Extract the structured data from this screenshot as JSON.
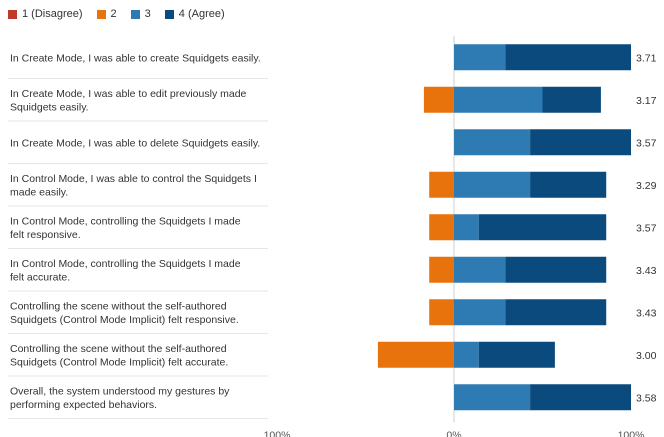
{
  "chart_data": {
    "type": "bar",
    "orientation": "horizontal-diverging-stacked",
    "series": [
      {
        "name": "1 (Disagree)",
        "color": "#c0392b"
      },
      {
        "name": "2",
        "color": "#e8720c"
      },
      {
        "name": "3",
        "color": "#2e7bb4"
      },
      {
        "name": "4 (Agree)",
        "color": "#0b4a7d"
      }
    ],
    "categories": [
      "In Create Mode, I was able to create Squidgets easily.",
      "In Create Mode, I was able to edit previously made Squidgets easily.",
      "In Create Mode, I was able to delete Squidgets easily.",
      "In Control Mode, I was able to control the Squidgets I made easily.",
      "In Control Mode, controlling the Squidgets I made felt responsive.",
      "In Control Mode, controlling the Squidgets I made felt accurate.",
      "Controlling the scene without the self-authored Squidgets (Control Mode Implicit) felt responsive.",
      "Controlling the scene without the self-authored Squidgets (Control Mode Implicit) felt accurate.",
      "Overall, the system understood my gestures by performing expected behaviors."
    ],
    "label_lines": [
      [
        "In Create Mode, I was able to create Squidgets easily."
      ],
      [
        "In Create Mode, I was able to edit previously made",
        "Squidgets easily."
      ],
      [
        "In Create Mode, I was able to delete Squidgets easily."
      ],
      [
        "In Control Mode, I was able to control the Squidgets I",
        "made easily."
      ],
      [
        "In Control Mode, controlling the Squidgets I made",
        "felt responsive."
      ],
      [
        "In Control Mode, controlling the Squidgets I made",
        "felt accurate."
      ],
      [
        "Controlling the scene without the self-authored",
        "Squidgets (Control Mode Implicit) felt responsive."
      ],
      [
        "Controlling the scene without the self-authored",
        "Squidgets (Control Mode Implicit) felt accurate."
      ],
      [
        "Overall, the system understood my gestures by",
        "performing expected behaviors."
      ]
    ],
    "values": [
      [
        0,
        0,
        0.29,
        0.71
      ],
      [
        0,
        0.17,
        0.5,
        0.33
      ],
      [
        0,
        0,
        0.43,
        0.57
      ],
      [
        0,
        0.14,
        0.43,
        0.43
      ],
      [
        0,
        0.14,
        0.14,
        0.72
      ],
      [
        0,
        0.14,
        0.29,
        0.57
      ],
      [
        0,
        0.14,
        0.29,
        0.57
      ],
      [
        0,
        0.43,
        0.14,
        0.43
      ],
      [
        0,
        0,
        0.43,
        0.57
      ]
    ],
    "means": [
      "3.71",
      "3.17",
      "3.57",
      "3.29",
      "3.57",
      "3.43",
      "3.43",
      "3.00",
      "3.58"
    ],
    "x_ticks": [
      "100%",
      "0%",
      "100%"
    ],
    "xlim": [
      -1,
      1
    ]
  }
}
